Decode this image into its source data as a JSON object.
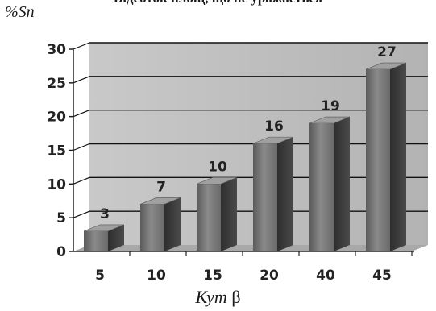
{
  "chart_data": {
    "type": "bar",
    "title": "Відсоток площ, що не уражається",
    "ylabel": "%Sn",
    "xlabel_main": "Кут",
    "xlabel_symbol": "β",
    "categories": [
      "5",
      "10",
      "15",
      "20",
      "40",
      "45"
    ],
    "values": [
      3,
      7,
      10,
      16,
      19,
      27
    ],
    "ylim": [
      0,
      30
    ],
    "yticks": [
      0,
      5,
      10,
      15,
      20,
      25,
      30
    ],
    "grid": true,
    "style": "3d-column"
  },
  "colors": {
    "bar_front": "#6e6e6e",
    "bar_side": "#3a3a3a",
    "bar_top": "#a0a0a0",
    "plot_back": "#bdbdbd",
    "plot_floor": "#a8a8a8",
    "grid": "#111111"
  }
}
